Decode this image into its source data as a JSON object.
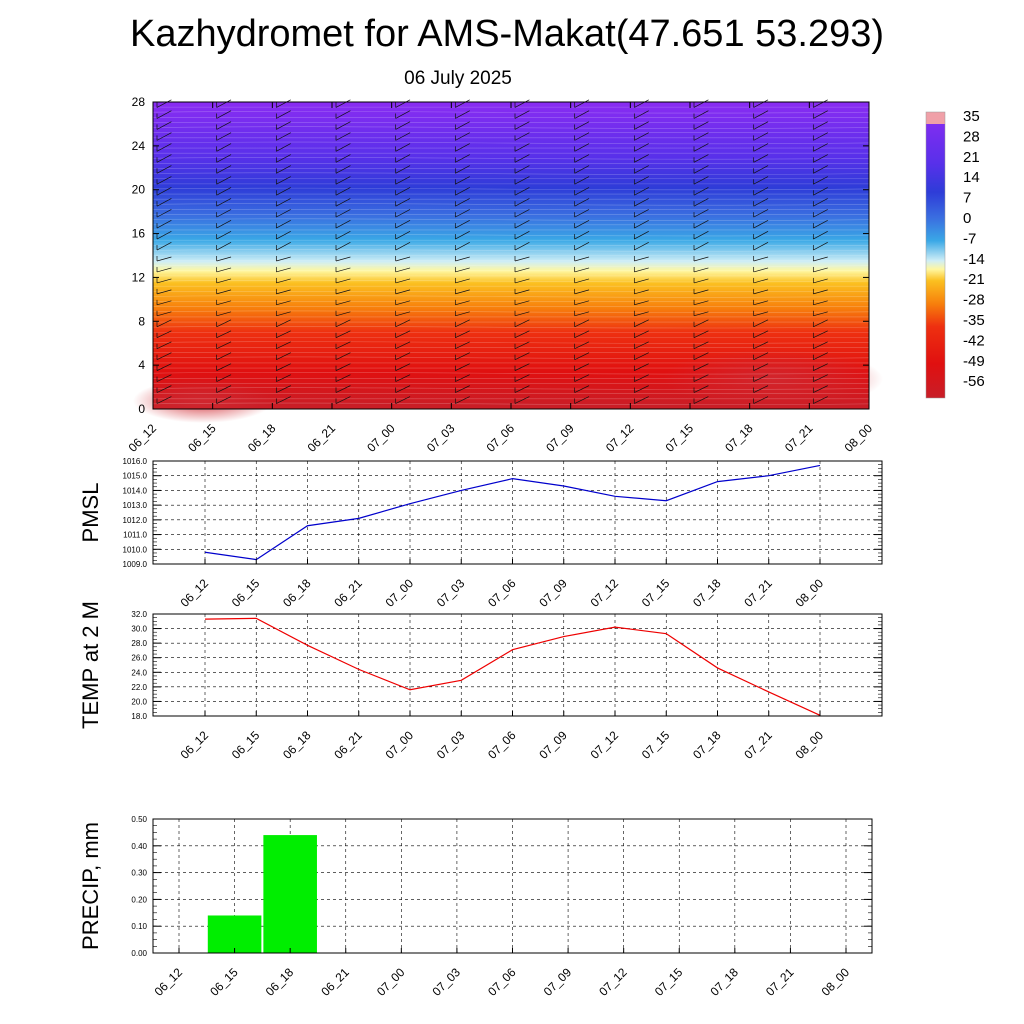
{
  "title": "Kazhydromet for AMS-Makat(47.651 53.293)",
  "subtitle": "06 July 2025",
  "colorbar": {
    "labels": [
      "35",
      "28",
      "21",
      "14",
      "7",
      "0",
      "-7",
      "-14",
      "-21",
      "-28",
      "-35",
      "-42",
      "-49",
      "-56"
    ]
  },
  "chart_data": [
    {
      "type": "heatmap",
      "name": "temperature cross-section",
      "x_labels": [
        "06_12",
        "06_15",
        "06_18",
        "06_21",
        "07_00",
        "07_03",
        "07_06",
        "07_09",
        "07_12",
        "07_15",
        "07_18",
        "07_21",
        "08_00"
      ],
      "y_ticks": [
        "0",
        "4",
        "8",
        "12",
        "16",
        "20",
        "24",
        "28"
      ],
      "ylim": [
        0,
        28
      ],
      "color_range": [
        -56,
        35
      ],
      "overlay": "wind barbs"
    },
    {
      "type": "line",
      "ylabel": "PMSL",
      "x": [
        "06_12",
        "06_15",
        "06_18",
        "06_21",
        "07_00",
        "07_03",
        "07_06",
        "07_09",
        "07_12",
        "07_15",
        "07_18",
        "07_21",
        "08_00"
      ],
      "values": [
        1009.8,
        1009.3,
        1011.6,
        1012.1,
        1013.1,
        1014.0,
        1014.8,
        1014.3,
        1013.6,
        1013.3,
        1014.6,
        1015.0,
        1015.7
      ],
      "ylim": [
        1009.0,
        1016.0
      ],
      "y_ticks": [
        "1009.0",
        "1010.0",
        "1011.0",
        "1012.0",
        "1013.0",
        "1014.0",
        "1015.0",
        "1016.0"
      ],
      "color": "#0000cc",
      "grid": true
    },
    {
      "type": "line",
      "ylabel": "TEMP at 2 M",
      "x": [
        "06_12",
        "06_15",
        "06_18",
        "06_21",
        "07_00",
        "07_03",
        "07_06",
        "07_09",
        "07_12",
        "07_15",
        "07_18",
        "07_21",
        "08_00"
      ],
      "values": [
        31.3,
        31.4,
        27.7,
        24.4,
        21.6,
        22.9,
        27.1,
        28.9,
        30.2,
        29.3,
        24.6,
        21.3,
        18.1
      ],
      "ylim": [
        18.0,
        32.0
      ],
      "y_ticks": [
        "18.0",
        "20.0",
        "22.0",
        "24.0",
        "26.0",
        "28.0",
        "30.0",
        "32.0"
      ],
      "color": "#ee0000",
      "grid": true
    },
    {
      "type": "bar",
      "ylabel": "PRECIP, mm",
      "categories": [
        "06_12",
        "06_15",
        "06_18",
        "06_21",
        "07_00",
        "07_03",
        "07_06",
        "07_09",
        "07_12",
        "07_15",
        "07_18",
        "07_21",
        "08_00"
      ],
      "values": [
        0.0,
        0.14,
        0.44,
        0.0,
        0.0,
        0.0,
        0.0,
        0.0,
        0.0,
        0.0,
        0.0,
        0.0,
        0.0
      ],
      "ylim": [
        0.0,
        0.5
      ],
      "y_ticks": [
        "0.00",
        "0.10",
        "0.20",
        "0.30",
        "0.40",
        "0.50"
      ],
      "color": "#00ee00",
      "grid": true
    }
  ]
}
